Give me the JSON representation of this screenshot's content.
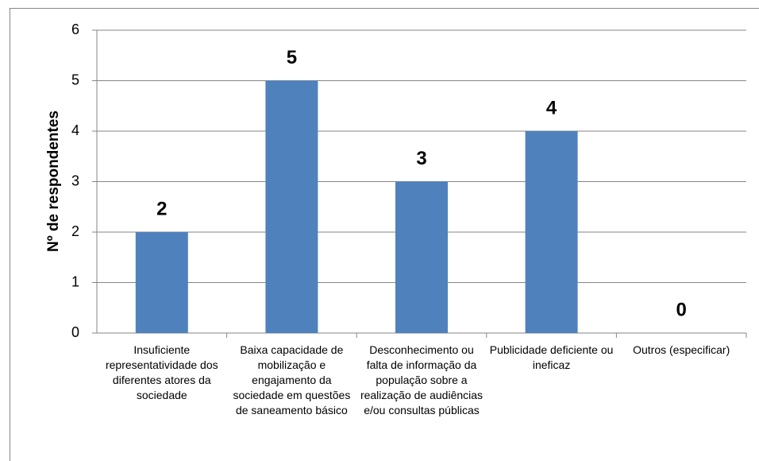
{
  "chart_data": {
    "type": "bar",
    "ylabel": "Nº de respondentes",
    "categories": [
      "Insuficiente representatividade dos diferentes atores da sociedade",
      "Baixa capacidade de mobilização e engajamento da sociedade em questões de saneamento básico",
      "Desconhecimento ou falta de informação da população sobre a realização de audiências e/ou consultas públicas",
      "Publicidade deficiente ou ineficaz",
      "Outros (especificar)"
    ],
    "values": [
      2,
      5,
      3,
      4,
      0
    ],
    "color": "#4f81bd",
    "ylim": [
      0,
      6
    ],
    "yticks": [
      0,
      1,
      2,
      3,
      4,
      5,
      6
    ],
    "grid": true
  }
}
